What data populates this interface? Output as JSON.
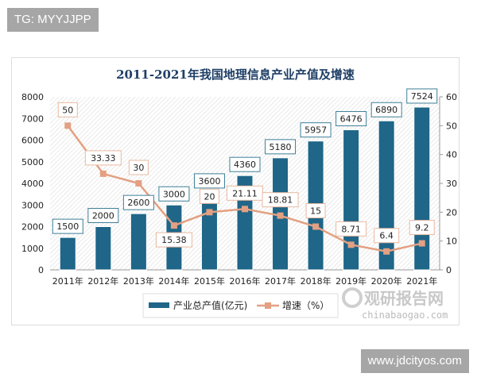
{
  "overlay_tag": "TG: MYYJJPP",
  "site_tag": "www.jdcityos.com",
  "watermark": {
    "name": "观研报告网",
    "url": "chinabaogao.com"
  },
  "colors": {
    "bar": "#1f6688",
    "line": "#e3a082",
    "title": "#1f3f66",
    "hatch": "#dcdcdc"
  },
  "chart_data": {
    "type": "bar+line",
    "title": "2011-2021年我国地理信息产业产值及增速",
    "categories": [
      "2011年",
      "2012年",
      "2013年",
      "2014年",
      "2015年",
      "2016年",
      "2017年",
      "2018年",
      "2019年",
      "2020年",
      "2021年"
    ],
    "series": [
      {
        "name": "产业总产值(亿元)",
        "type": "bar",
        "axis": "left",
        "values": [
          1500,
          2000,
          2600,
          3000,
          3600,
          4360,
          5180,
          5957,
          6476,
          6890,
          7524
        ]
      },
      {
        "name": "增速（%）",
        "type": "line",
        "axis": "right",
        "values": [
          50,
          33.33,
          30,
          15.38,
          20,
          21.11,
          18.81,
          15,
          8.71,
          6.4,
          9.2
        ]
      }
    ],
    "left_axis": {
      "ylim": [
        0,
        8000
      ],
      "ticks": [
        0,
        1000,
        2000,
        3000,
        4000,
        5000,
        6000,
        7000,
        8000
      ]
    },
    "right_axis": {
      "ylim": [
        0,
        60
      ],
      "ticks": [
        0,
        10,
        20,
        30,
        40,
        50,
        60
      ]
    },
    "legend_position": "bottom",
    "grid": false
  }
}
